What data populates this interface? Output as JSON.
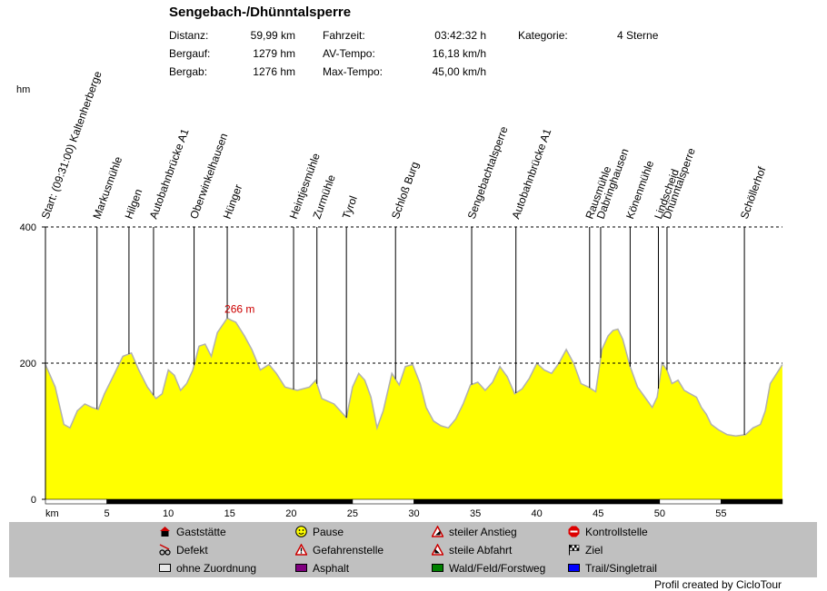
{
  "title": "Sengebach-/Dhünntalsperre",
  "stats": [
    {
      "label": "Distanz:",
      "value": "59,99 km"
    },
    {
      "label": "Bergauf:",
      "value": "1279 hm"
    },
    {
      "label": "Bergab:",
      "value": "1276 hm"
    },
    {
      "label": "Fahrzeit:",
      "value": "03:42:32 h"
    },
    {
      "label": "AV-Tempo:",
      "value": "16,18 km/h"
    },
    {
      "label": "Max-Tempo:",
      "value": "45,00 km/h"
    },
    {
      "label": "Kategorie:",
      "value": "4 Sterne"
    }
  ],
  "chart_data": {
    "type": "area",
    "y_unit": "hm",
    "x_unit": "km",
    "xlim": [
      0,
      60
    ],
    "ylim": [
      0,
      400
    ],
    "y_ticks": [
      0,
      200,
      400
    ],
    "x_ticks": [
      5,
      10,
      15,
      20,
      25,
      30,
      35,
      40,
      45,
      50,
      55
    ],
    "fill_color": "#ffff00",
    "line_color": "#b0b0b0",
    "max_label": "266 m",
    "max_point": [
      14.8,
      266
    ],
    "profile": [
      [
        0,
        198
      ],
      [
        0.8,
        165
      ],
      [
        1.5,
        110
      ],
      [
        2,
        105
      ],
      [
        2.6,
        130
      ],
      [
        3.2,
        140
      ],
      [
        3.8,
        135
      ],
      [
        4.3,
        132
      ],
      [
        4.8,
        155
      ],
      [
        5.5,
        180
      ],
      [
        6.3,
        210
      ],
      [
        7,
        215
      ],
      [
        7.6,
        190
      ],
      [
        8.3,
        165
      ],
      [
        9,
        148
      ],
      [
        9.5,
        155
      ],
      [
        10,
        190
      ],
      [
        10.5,
        182
      ],
      [
        11,
        160
      ],
      [
        11.5,
        170
      ],
      [
        12,
        190
      ],
      [
        12.5,
        225
      ],
      [
        13,
        228
      ],
      [
        13.5,
        210
      ],
      [
        14,
        245
      ],
      [
        14.8,
        266
      ],
      [
        15.5,
        260
      ],
      [
        16.2,
        240
      ],
      [
        16.8,
        220
      ],
      [
        17.5,
        190
      ],
      [
        18.2,
        198
      ],
      [
        18.8,
        185
      ],
      [
        19.5,
        165
      ],
      [
        20.5,
        160
      ],
      [
        21.5,
        165
      ],
      [
        22,
        175
      ],
      [
        22.5,
        148
      ],
      [
        23.5,
        140
      ],
      [
        24.5,
        120
      ],
      [
        25,
        165
      ],
      [
        25.5,
        185
      ],
      [
        26,
        175
      ],
      [
        26.5,
        150
      ],
      [
        27,
        105
      ],
      [
        27.5,
        130
      ],
      [
        28.2,
        185
      ],
      [
        28.8,
        168
      ],
      [
        29.3,
        195
      ],
      [
        29.9,
        198
      ],
      [
        30.5,
        170
      ],
      [
        31,
        135
      ],
      [
        31.6,
        115
      ],
      [
        32.2,
        108
      ],
      [
        32.8,
        105
      ],
      [
        33.4,
        118
      ],
      [
        34,
        140
      ],
      [
        34.6,
        168
      ],
      [
        35.2,
        172
      ],
      [
        35.8,
        160
      ],
      [
        36.4,
        172
      ],
      [
        37,
        195
      ],
      [
        37.6,
        180
      ],
      [
        38.2,
        155
      ],
      [
        38.8,
        162
      ],
      [
        39.4,
        178
      ],
      [
        40,
        200
      ],
      [
        40.6,
        190
      ],
      [
        41.2,
        185
      ],
      [
        41.8,
        200
      ],
      [
        42.4,
        220
      ],
      [
        43,
        200
      ],
      [
        43.6,
        170
      ],
      [
        44.2,
        165
      ],
      [
        44.8,
        158
      ],
      [
        45.3,
        220
      ],
      [
        45.8,
        240
      ],
      [
        46.2,
        248
      ],
      [
        46.6,
        250
      ],
      [
        47,
        235
      ],
      [
        47.6,
        195
      ],
      [
        48.2,
        165
      ],
      [
        48.8,
        150
      ],
      [
        49.4,
        135
      ],
      [
        49.8,
        150
      ],
      [
        50.2,
        200
      ],
      [
        50.6,
        190
      ],
      [
        51,
        170
      ],
      [
        51.5,
        175
      ],
      [
        52,
        160
      ],
      [
        52.5,
        155
      ],
      [
        53,
        150
      ],
      [
        53.4,
        135
      ],
      [
        53.8,
        125
      ],
      [
        54.2,
        110
      ],
      [
        54.8,
        102
      ],
      [
        55.5,
        95
      ],
      [
        56.2,
        93
      ],
      [
        57,
        95
      ],
      [
        57.6,
        105
      ],
      [
        58.2,
        110
      ],
      [
        58.6,
        130
      ],
      [
        59,
        170
      ],
      [
        59.99,
        198
      ]
    ],
    "waypoints": [
      {
        "label": "Start: (09:31:00) Kaltenherberge",
        "km": 0
      },
      {
        "label": "Markusmühle",
        "km": 4.2
      },
      {
        "label": "Hilgen",
        "km": 6.8
      },
      {
        "label": "Autobahnbrücke A1",
        "km": 8.8
      },
      {
        "label": "Oberwinkelhausen",
        "km": 12.1
      },
      {
        "label": "Hünger",
        "km": 14.8
      },
      {
        "label": "Heintjesmühle",
        "km": 20.2
      },
      {
        "label": "Zurmühle",
        "km": 22.1
      },
      {
        "label": "Tyrol",
        "km": 24.5
      },
      {
        "label": "Schloß Burg",
        "km": 28.5
      },
      {
        "label": "Sengebachtalsperre",
        "km": 34.7
      },
      {
        "label": "Autobahnbrücke A1",
        "km": 38.3
      },
      {
        "label": "Rausmühle",
        "km": 44.3
      },
      {
        "label": "Dabringhausen",
        "km": 45.2
      },
      {
        "label": "Könenmühle",
        "km": 47.6
      },
      {
        "label": "Lindscheid",
        "km": 49.9
      },
      {
        "label": "Dhünntalsperre",
        "km": 50.6
      },
      {
        "label": "Schöllerhof",
        "km": 56.9
      }
    ],
    "track_segments": [
      {
        "from": 0,
        "to": 5,
        "type": "ohne Zuordnung"
      },
      {
        "from": 5,
        "to": 25,
        "type": "Asphalt"
      },
      {
        "from": 25,
        "to": 30,
        "type": "ohne Zuordnung"
      },
      {
        "from": 30,
        "to": 50,
        "type": "Asphalt"
      },
      {
        "from": 50,
        "to": 55,
        "type": "ohne Zuordnung"
      },
      {
        "from": 55,
        "to": 59.99,
        "type": "Asphalt"
      }
    ]
  },
  "legend": [
    {
      "icon": "gaststaette-icon",
      "label": "Gaststätte"
    },
    {
      "icon": "pause-icon",
      "label": "Pause"
    },
    {
      "icon": "steiler-anstieg-icon",
      "label": "steiler Anstieg"
    },
    {
      "icon": "kontrollstelle-icon",
      "label": "Kontrollstelle"
    },
    {
      "icon": "defekt-icon",
      "label": "Defekt"
    },
    {
      "icon": "gefahrenstelle-icon",
      "label": "Gefahrenstelle"
    },
    {
      "icon": "steile-abfahrt-icon",
      "label": "steile Abfahrt"
    },
    {
      "icon": "ziel-icon",
      "label": "Ziel"
    },
    {
      "icon": "ohne-zuordnung-swatch",
      "label": "ohne Zuordnung",
      "color": "#e8e8e8"
    },
    {
      "icon": "asphalt-swatch",
      "label": "Asphalt",
      "color": "#800080"
    },
    {
      "icon": "wald-feld-forstweg-swatch",
      "label": "Wald/Feld/Forstweg",
      "color": "#008000"
    },
    {
      "icon": "trail-singletrail-swatch",
      "label": "Trail/Singletrail",
      "color": "#0000ff"
    }
  ],
  "credit": "Profil created by CicloTour"
}
